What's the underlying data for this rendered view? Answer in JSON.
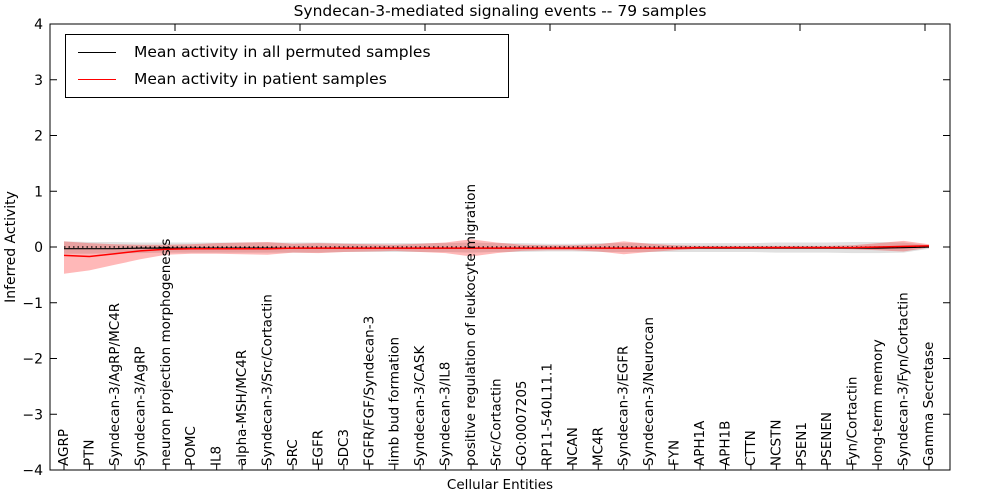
{
  "title": "Syndecan-3-mediated signaling events -- 79 samples",
  "axes": {
    "ylabel": "Inferred Activity",
    "xlabel": "Cellular Entities",
    "yticks": [
      {
        "label": "4",
        "value": 4
      },
      {
        "label": "3",
        "value": 3
      },
      {
        "label": "2",
        "value": 2
      },
      {
        "label": "1",
        "value": 1
      },
      {
        "label": "0",
        "value": 0
      },
      {
        "label": "−1",
        "value": -1
      },
      {
        "label": "−2",
        "value": -2
      },
      {
        "label": "−3",
        "value": -3
      },
      {
        "label": "−4",
        "value": -4
      }
    ]
  },
  "legend": {
    "items": [
      {
        "label": "Mean activity in all permuted samples",
        "color": "#000000"
      },
      {
        "label": "Mean activity in patient samples",
        "color": "#ff0000"
      }
    ]
  },
  "colors": {
    "permuted_line": "#000000",
    "patient_line": "#ff0000",
    "permuted_band": "rgba(0,0,0,0.12)",
    "patient_band": "rgba(255,0,0,0.28)",
    "zero_line": "#000000"
  },
  "chart_data": {
    "type": "line",
    "title": "Syndecan-3-mediated signaling events -- 79 samples",
    "xlabel": "Cellular Entities",
    "ylabel": "Inferred Activity",
    "ylim": [
      -4,
      4
    ],
    "grid": false,
    "legend_position": "upper left",
    "zero_line": {
      "style": "dotted",
      "color": "#000000",
      "y": 0
    },
    "categories": [
      "AGRP",
      "PTN",
      "Syndecan-3/AgRP/MC4R",
      "Syndecan-3/AgRP",
      "neuron projection morphogenesis",
      "POMC",
      "IL8",
      "alpha-MSH/MC4R",
      "Syndecan-3/Src/Cortactin",
      "SRC",
      "EGFR",
      "SDC3",
      "FGFR/FGF/Syndecan-3",
      "limb bud formation",
      "Syndecan-3/CASK",
      "Syndecan-3/IL8",
      "positive regulation of leukocyte migration",
      "Src/Cortactin",
      "GO:0007205",
      "RP11-540L11.1",
      "NCAN",
      "MC4R",
      "Syndecan-3/EGFR",
      "Syndecan-3/Neurocan",
      "FYN",
      "APH1A",
      "APH1B",
      "CTTN",
      "NCSTN",
      "PSEN1",
      "PSENEN",
      "Fyn/Cortactin",
      "long-term memory",
      "Syndecan-3/Fyn/Cortactin",
      "Gamma Secretase"
    ],
    "series": [
      {
        "name": "Mean activity in all permuted samples",
        "color": "#000000",
        "values": [
          -0.03,
          -0.03,
          -0.03,
          -0.02,
          -0.02,
          -0.02,
          -0.02,
          -0.02,
          -0.02,
          -0.02,
          -0.02,
          -0.02,
          -0.02,
          -0.02,
          -0.02,
          -0.02,
          -0.02,
          -0.02,
          -0.02,
          -0.02,
          -0.02,
          -0.02,
          -0.02,
          -0.02,
          -0.02,
          -0.02,
          -0.02,
          -0.02,
          -0.02,
          -0.02,
          -0.02,
          -0.02,
          -0.02,
          -0.01,
          0.0
        ]
      },
      {
        "name": "Mean activity in patient samples",
        "color": "#ff0000",
        "values": [
          -0.15,
          -0.17,
          -0.12,
          -0.07,
          -0.04,
          -0.03,
          -0.03,
          -0.03,
          -0.03,
          -0.02,
          -0.02,
          -0.02,
          -0.02,
          -0.02,
          -0.02,
          -0.02,
          -0.02,
          -0.02,
          -0.02,
          -0.02,
          -0.02,
          -0.02,
          -0.02,
          -0.02,
          -0.02,
          -0.01,
          -0.01,
          -0.01,
          -0.01,
          -0.01,
          -0.01,
          -0.01,
          0.0,
          0.01,
          0.02
        ]
      }
    ],
    "bands": [
      {
        "name": "permuted-std-band",
        "color": "rgba(0,0,0,0.12)",
        "upper": [
          0.1,
          0.09,
          0.09,
          0.08,
          0.08,
          0.08,
          0.08,
          0.08,
          0.08,
          0.08,
          0.08,
          0.07,
          0.07,
          0.07,
          0.07,
          0.07,
          0.08,
          0.07,
          0.07,
          0.06,
          0.06,
          0.07,
          0.07,
          0.07,
          0.07,
          0.07,
          0.07,
          0.07,
          0.08,
          0.08,
          0.08,
          0.09,
          0.09,
          0.08,
          0.03
        ],
        "lower": [
          -0.12,
          -0.12,
          -0.11,
          -0.11,
          -0.1,
          -0.1,
          -0.1,
          -0.1,
          -0.1,
          -0.1,
          -0.1,
          -0.09,
          -0.09,
          -0.09,
          -0.09,
          -0.09,
          -0.1,
          -0.09,
          -0.09,
          -0.08,
          -0.08,
          -0.09,
          -0.09,
          -0.09,
          -0.09,
          -0.09,
          -0.09,
          -0.09,
          -0.1,
          -0.1,
          -0.1,
          -0.11,
          -0.11,
          -0.1,
          -0.03
        ]
      },
      {
        "name": "patient-std-band",
        "color": "rgba(255,0,0,0.28)",
        "upper": [
          0.1,
          0.07,
          0.05,
          0.04,
          0.04,
          0.05,
          0.07,
          0.08,
          0.09,
          0.06,
          0.07,
          0.06,
          0.05,
          0.04,
          0.06,
          0.08,
          0.14,
          0.08,
          0.04,
          0.03,
          0.03,
          0.05,
          0.1,
          0.06,
          0.03,
          0.02,
          0.02,
          0.02,
          0.02,
          0.02,
          0.02,
          0.03,
          0.07,
          0.11,
          0.05
        ],
        "lower": [
          -0.48,
          -0.42,
          -0.32,
          -0.22,
          -0.14,
          -0.12,
          -0.12,
          -0.13,
          -0.14,
          -0.1,
          -0.11,
          -0.09,
          -0.08,
          -0.07,
          -0.09,
          -0.11,
          -0.17,
          -0.11,
          -0.07,
          -0.06,
          -0.06,
          -0.08,
          -0.13,
          -0.09,
          -0.06,
          -0.03,
          -0.03,
          -0.03,
          -0.03,
          -0.03,
          -0.03,
          -0.04,
          -0.06,
          -0.08,
          -0.01
        ]
      }
    ]
  }
}
